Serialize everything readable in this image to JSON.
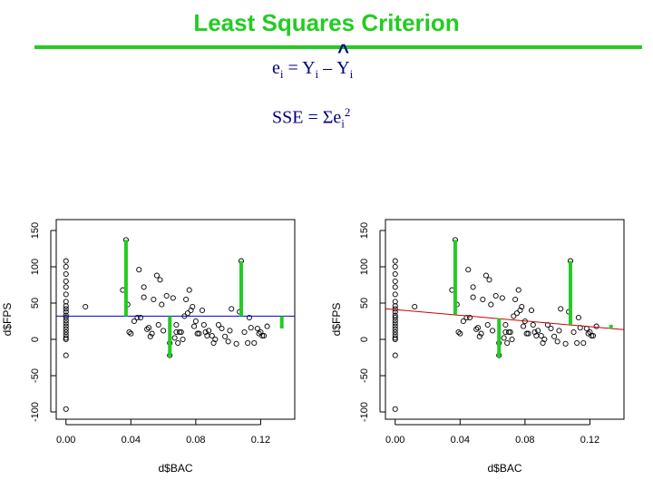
{
  "slide": {
    "title": "Least Squares Criterion",
    "colors": {
      "title": "#22cc22",
      "equation": "#000080",
      "residual": "#22cc22",
      "mean_line": "#0000cc",
      "fit_line": "#cc0000"
    }
  },
  "equations": {
    "residual": {
      "e": "e",
      "e_sub": "i",
      "eq": "=",
      "y": "Y",
      "y_sub": "i",
      "minus": "–",
      "yhat": "Y",
      "hat": "^",
      "yhat_sub": "i"
    },
    "sse": {
      "lhs": "SSE =",
      "sigma": "Σ",
      "e": "e",
      "e_sub": "i",
      "e_sup": "2"
    }
  },
  "chart_data": [
    {
      "type": "scatter",
      "title": "",
      "xlabel": "d$BAC",
      "ylabel": "d$FPS",
      "xlim": [
        -0.006,
        0.141
      ],
      "ylim": [
        -110,
        165
      ],
      "xticks": [
        0.0,
        0.04,
        0.08,
        0.12
      ],
      "xtick_labels": [
        "0.00",
        "0.04",
        "0.08",
        "0.12"
      ],
      "yticks": [
        -100,
        -50,
        0,
        50,
        100,
        150
      ],
      "ytick_labels": [
        "-100",
        "-50",
        "0",
        "50",
        "100",
        "150"
      ],
      "points_x": [
        0.0,
        0.0,
        0.0,
        0.0,
        0.0,
        0.0,
        0.0,
        0.0,
        0.0,
        0.0,
        0.0,
        0.0,
        0.0,
        0.0,
        0.0,
        0.0,
        0.0,
        0.0,
        0.0,
        0.0,
        0.0,
        0.0,
        0.012,
        0.035,
        0.037,
        0.038,
        0.039,
        0.04,
        0.042,
        0.044,
        0.045,
        0.046,
        0.048,
        0.048,
        0.05,
        0.051,
        0.052,
        0.053,
        0.054,
        0.056,
        0.057,
        0.058,
        0.059,
        0.06,
        0.062,
        0.064,
        0.064,
        0.066,
        0.067,
        0.068,
        0.068,
        0.069,
        0.07,
        0.071,
        0.072,
        0.073,
        0.074,
        0.075,
        0.076,
        0.077,
        0.078,
        0.079,
        0.08,
        0.081,
        0.082,
        0.084,
        0.085,
        0.086,
        0.087,
        0.088,
        0.09,
        0.091,
        0.092,
        0.094,
        0.096,
        0.098,
        0.1,
        0.101,
        0.102,
        0.105,
        0.107,
        0.108,
        0.11,
        0.112,
        0.113,
        0.114,
        0.116,
        0.118,
        0.119,
        0.12,
        0.121,
        0.122,
        0.124
      ],
      "points_y": [
        108,
        100,
        90,
        80,
        72,
        62,
        52,
        46,
        42,
        38,
        33,
        30,
        26,
        22,
        18,
        14,
        10,
        6,
        2,
        -22,
        -96,
        0,
        45,
        68,
        137,
        48,
        10,
        8,
        25,
        30,
        96,
        30,
        72,
        58,
        14,
        16,
        4,
        8,
        55,
        88,
        20,
        82,
        48,
        12,
        60,
        -22,
        -5,
        57,
        2,
        20,
        10,
        -5,
        10,
        10,
        0,
        32,
        55,
        36,
        68,
        40,
        45,
        18,
        25,
        8,
        8,
        40,
        20,
        10,
        5,
        12,
        5,
        -5,
        0,
        20,
        15,
        4,
        -3,
        12,
        42,
        -6,
        38,
        108,
        10,
        -5,
        30,
        16,
        -5,
        15,
        8,
        10,
        5,
        5,
        18
      ],
      "series": [
        {
          "kind": "horizontal_mean_line",
          "y": 32
        },
        {
          "kind": "vertical_residual_segments",
          "segments": [
            [
              0.037,
              32,
              137
            ],
            [
              0.064,
              32,
              -25
            ],
            [
              0.108,
              32,
              108
            ],
            [
              0.133,
              32,
              15
            ]
          ]
        }
      ]
    },
    {
      "type": "scatter",
      "title": "",
      "xlabel": "d$BAC",
      "ylabel": "d$FPS",
      "xlim": [
        -0.006,
        0.141
      ],
      "ylim": [
        -110,
        165
      ],
      "xticks": [
        0.0,
        0.04,
        0.08,
        0.12
      ],
      "xtick_labels": [
        "0.00",
        "0.04",
        "0.08",
        "0.12"
      ],
      "yticks": [
        -100,
        -50,
        0,
        50,
        100,
        150
      ],
      "ytick_labels": [
        "-100",
        "-50",
        "0",
        "50",
        "100",
        "150"
      ],
      "points_x": [
        0.0,
        0.0,
        0.0,
        0.0,
        0.0,
        0.0,
        0.0,
        0.0,
        0.0,
        0.0,
        0.0,
        0.0,
        0.0,
        0.0,
        0.0,
        0.0,
        0.0,
        0.0,
        0.0,
        0.0,
        0.0,
        0.0,
        0.012,
        0.035,
        0.037,
        0.038,
        0.039,
        0.04,
        0.042,
        0.044,
        0.045,
        0.046,
        0.048,
        0.048,
        0.05,
        0.051,
        0.052,
        0.053,
        0.054,
        0.056,
        0.057,
        0.058,
        0.059,
        0.06,
        0.062,
        0.064,
        0.064,
        0.066,
        0.067,
        0.068,
        0.068,
        0.069,
        0.07,
        0.071,
        0.072,
        0.073,
        0.074,
        0.075,
        0.076,
        0.077,
        0.078,
        0.079,
        0.08,
        0.081,
        0.082,
        0.084,
        0.085,
        0.086,
        0.087,
        0.088,
        0.09,
        0.091,
        0.092,
        0.094,
        0.096,
        0.098,
        0.1,
        0.101,
        0.102,
        0.105,
        0.107,
        0.108,
        0.11,
        0.112,
        0.113,
        0.114,
        0.116,
        0.118,
        0.119,
        0.12,
        0.121,
        0.122,
        0.124
      ],
      "points_y": [
        108,
        100,
        90,
        80,
        72,
        62,
        52,
        46,
        42,
        38,
        33,
        30,
        26,
        22,
        18,
        14,
        10,
        6,
        2,
        -22,
        -96,
        0,
        45,
        68,
        137,
        48,
        10,
        8,
        25,
        30,
        96,
        30,
        72,
        58,
        14,
        16,
        4,
        8,
        55,
        88,
        20,
        82,
        48,
        12,
        60,
        -22,
        -5,
        57,
        2,
        20,
        10,
        -5,
        10,
        10,
        0,
        32,
        55,
        36,
        68,
        40,
        45,
        18,
        25,
        8,
        8,
        40,
        20,
        10,
        5,
        12,
        5,
        -5,
        0,
        20,
        15,
        4,
        -3,
        12,
        42,
        -6,
        38,
        108,
        10,
        -5,
        30,
        16,
        -5,
        15,
        8,
        10,
        5,
        5,
        18
      ],
      "series": [
        {
          "kind": "fitted_line",
          "x": [
            0.0,
            0.133
          ],
          "y": [
            41,
            15
          ]
        },
        {
          "kind": "vertical_residual_segments",
          "segments": [
            [
              0.037,
              34,
              137
            ],
            [
              0.064,
              29,
              -25
            ],
            [
              0.108,
              20,
              108
            ],
            [
              0.133,
              15,
              20
            ]
          ]
        }
      ]
    }
  ]
}
